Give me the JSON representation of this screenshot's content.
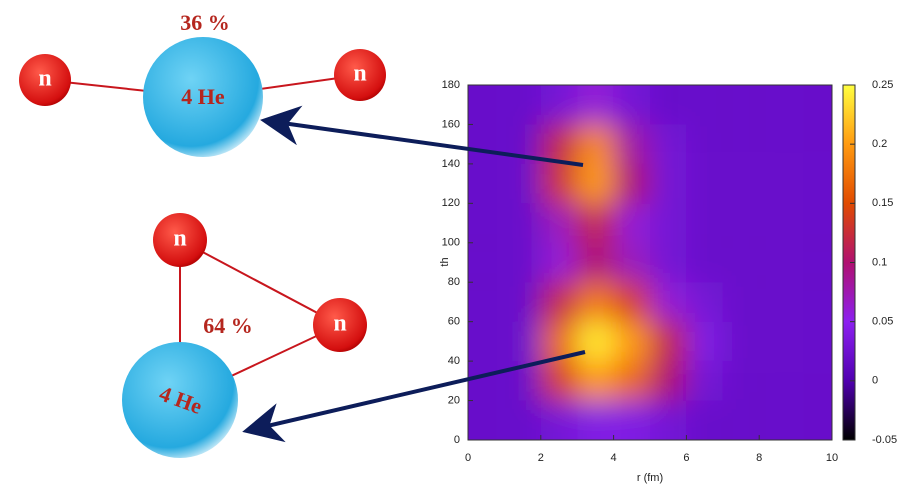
{
  "chart_data": {
    "type": "heatmap",
    "xlabel": "r (fm)",
    "ylabel": "th",
    "x": [
      0.5,
      1.5,
      2.5,
      3.5,
      4.5,
      5.5,
      6.5,
      7.5,
      8.5,
      9.5
    ],
    "y": [
      170,
      150,
      130,
      110,
      90,
      70,
      50,
      30,
      10
    ],
    "z": [
      [
        0.02,
        0.02,
        0.03,
        0.06,
        0.03,
        0.02,
        0.02,
        0.02,
        0.02,
        0.02
      ],
      [
        0.02,
        0.02,
        0.12,
        0.19,
        0.08,
        0.03,
        0.02,
        0.02,
        0.02,
        0.02
      ],
      [
        0.02,
        0.02,
        0.13,
        0.2,
        0.1,
        0.03,
        0.02,
        0.02,
        0.02,
        0.02
      ],
      [
        0.02,
        0.02,
        0.07,
        0.12,
        0.06,
        0.03,
        0.02,
        0.02,
        0.02,
        0.02
      ],
      [
        0.02,
        0.02,
        0.06,
        0.1,
        0.07,
        0.03,
        0.02,
        0.02,
        0.02,
        0.02
      ],
      [
        0.02,
        0.02,
        0.12,
        0.18,
        0.14,
        0.06,
        0.03,
        0.02,
        0.02,
        0.02
      ],
      [
        0.02,
        0.02,
        0.17,
        0.24,
        0.2,
        0.12,
        0.04,
        0.02,
        0.02,
        0.02
      ],
      [
        0.02,
        0.02,
        0.14,
        0.2,
        0.17,
        0.1,
        0.03,
        0.02,
        0.02,
        0.02
      ],
      [
        0.02,
        0.02,
        0.03,
        0.04,
        0.04,
        0.03,
        0.02,
        0.02,
        0.02,
        0.02
      ]
    ],
    "xlim": [
      0,
      10
    ],
    "xticks": [
      0,
      2,
      4,
      6,
      8,
      10
    ],
    "ylim": [
      0,
      180
    ],
    "yticks": [
      0,
      20,
      40,
      60,
      80,
      100,
      120,
      140,
      160,
      180
    ],
    "zlim": [
      -0.05,
      0.25
    ],
    "zticks": [
      -0.05,
      0,
      0.05,
      0.1,
      0.15,
      0.2,
      0.25
    ],
    "colormap": [
      "#000000",
      "#5000b0",
      "#8c20f0",
      "#b01070",
      "#e04a00",
      "#ff9a10",
      "#ffff40"
    ]
  },
  "diagram": {
    "top": {
      "percent": "36 %",
      "core": "4 He",
      "neutrons": [
        "n",
        "n"
      ]
    },
    "bottom": {
      "percent": "64 %",
      "core": "4 He",
      "neutrons": [
        "n",
        "n"
      ]
    }
  }
}
